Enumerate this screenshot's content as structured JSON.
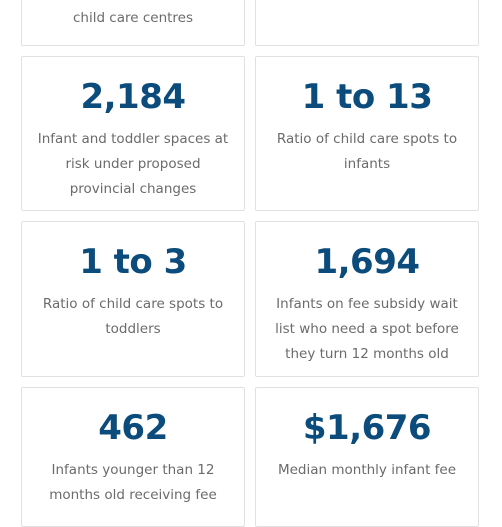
{
  "cards": [
    {
      "stat": "",
      "desc": "child care centres"
    },
    {
      "stat": "",
      "desc": ""
    },
    {
      "stat": "2,184",
      "desc": "Infant and toddler spaces at risk under proposed provincial changes"
    },
    {
      "stat": "1 to 13",
      "desc": "Ratio of child care spots to infants"
    },
    {
      "stat": "1 to 3",
      "desc": "Ratio of child care spots to toddlers"
    },
    {
      "stat": "1,694",
      "desc": "Infants on fee subsidy wait list who need a spot before they turn 12 months old"
    },
    {
      "stat": "462",
      "desc": "Infants younger than 12 months old receiving fee"
    },
    {
      "stat": "$1,676",
      "desc": "Median monthly infant fee"
    }
  ],
  "colors": {
    "stat_text": "#0b4c7c",
    "desc_text": "#6b6b6b",
    "card_border": "#e1e1e1"
  }
}
